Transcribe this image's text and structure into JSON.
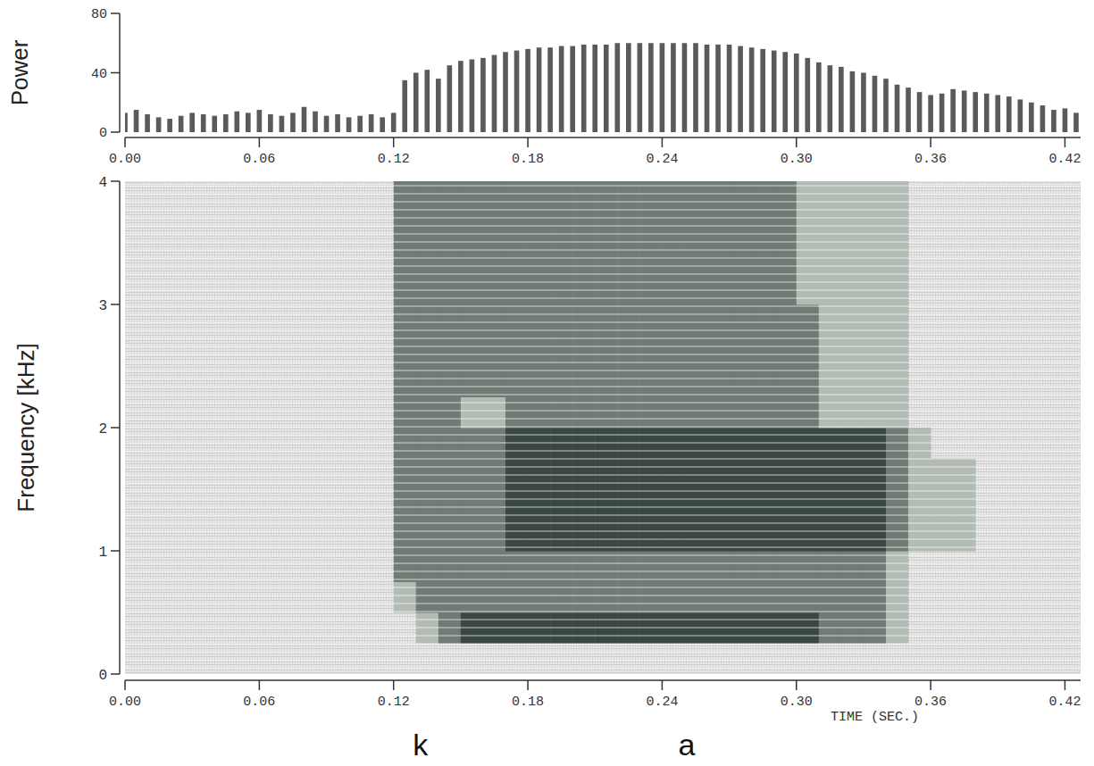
{
  "chart_data": [
    {
      "type": "bar",
      "y_label": "Power",
      "x": [
        0,
        0.005,
        0.01,
        0.015,
        0.02,
        0.025,
        0.03,
        0.035,
        0.04,
        0.045,
        0.05,
        0.055,
        0.06,
        0.065,
        0.07,
        0.075,
        0.08,
        0.085,
        0.09,
        0.095,
        0.1,
        0.105,
        0.11,
        0.115,
        0.12,
        0.125,
        0.13,
        0.135,
        0.14,
        0.145,
        0.15,
        0.155,
        0.16,
        0.165,
        0.17,
        0.175,
        0.18,
        0.185,
        0.19,
        0.195,
        0.2,
        0.205,
        0.21,
        0.215,
        0.22,
        0.225,
        0.23,
        0.235,
        0.24,
        0.245,
        0.25,
        0.255,
        0.26,
        0.265,
        0.27,
        0.275,
        0.28,
        0.285,
        0.29,
        0.295,
        0.3,
        0.305,
        0.31,
        0.315,
        0.32,
        0.325,
        0.33,
        0.335,
        0.34,
        0.345,
        0.35,
        0.355,
        0.36,
        0.365,
        0.37,
        0.375,
        0.38,
        0.385,
        0.39,
        0.395,
        0.4,
        0.405,
        0.41,
        0.415,
        0.42,
        0.425
      ],
      "values": [
        13,
        15,
        12,
        10,
        9,
        11,
        13,
        12,
        11,
        12,
        14,
        13,
        15,
        12,
        11,
        13,
        17,
        14,
        11,
        12,
        10,
        11,
        12,
        10,
        13,
        35,
        40,
        42,
        36,
        45,
        48,
        49,
        50,
        52,
        54,
        55,
        56,
        57,
        57,
        58,
        58,
        59,
        59,
        59,
        60,
        60,
        60,
        60,
        60,
        60,
        60,
        60,
        59,
        59,
        59,
        58,
        57,
        56,
        55,
        54,
        53,
        50,
        47,
        45,
        44,
        41,
        40,
        38,
        36,
        32,
        30,
        27,
        25,
        26,
        29,
        28,
        27,
        26,
        25,
        24,
        22,
        20,
        18,
        15,
        16,
        13
      ],
      "xlim": [
        0,
        0.427
      ],
      "ylim": [
        0,
        80
      ],
      "xticks": [
        {
          "value": 0,
          "label": "0.00"
        },
        0.06,
        0.12,
        0.18,
        0.24,
        {
          "value": 0.3,
          "label": "0.30"
        },
        0.36,
        0.42
      ],
      "yticks": [
        0,
        40,
        80
      ],
      "color": "#5a5a5a"
    },
    {
      "type": "heatmap",
      "x_label": "TIME (SEC.)",
      "y_label": "Frequency [kHz]",
      "xlim": [
        0,
        0.427
      ],
      "ylim": [
        0,
        4
      ],
      "xticks": [
        {
          "value": 0,
          "label": "0.00"
        },
        0.06,
        0.12,
        0.18,
        0.24,
        {
          "value": 0.3,
          "label": "0.30"
        },
        0.36,
        0.42
      ],
      "yticks": [
        0,
        1,
        2,
        3,
        4
      ],
      "x_bins": [
        0,
        0.01,
        0.02,
        0.03,
        0.04,
        0.05,
        0.06,
        0.07,
        0.08,
        0.09,
        0.1,
        0.11,
        0.12,
        0.13,
        0.14,
        0.15,
        0.16,
        0.17,
        0.18,
        0.19,
        0.2,
        0.21,
        0.22,
        0.23,
        0.24,
        0.25,
        0.26,
        0.27,
        0.28,
        0.29,
        0.3,
        0.31,
        0.32,
        0.33,
        0.34,
        0.35,
        0.36,
        0.37,
        0.38,
        0.39,
        0.4,
        0.41,
        0.42
      ],
      "y_bins": [
        0,
        0.25,
        0.5,
        0.75,
        1,
        1.25,
        1.5,
        1.75,
        2,
        2.25,
        2.5,
        2.75,
        3,
        3.25,
        3.5,
        3.75,
        4
      ],
      "cells": [
        [
          0,
          0,
          0,
          0,
          0,
          0,
          0,
          0,
          0,
          0,
          0,
          0,
          0,
          0,
          0,
          0,
          0,
          0,
          0,
          0,
          0,
          0,
          0,
          0,
          0,
          0,
          0,
          0,
          0,
          0,
          0,
          0,
          0,
          0,
          0,
          0,
          0,
          0,
          0,
          0,
          0,
          0
        ],
        [
          0,
          0,
          0,
          0,
          0,
          0,
          0,
          0,
          0,
          0,
          0,
          0,
          0,
          1,
          2,
          3,
          3,
          3,
          3,
          3,
          3,
          3,
          3,
          3,
          3,
          3,
          3,
          3,
          3,
          3,
          3,
          2,
          2,
          2,
          1,
          0,
          0,
          0,
          0,
          0,
          0,
          0
        ],
        [
          0,
          0,
          0,
          0,
          0,
          0,
          0,
          0,
          0,
          0,
          0,
          0,
          1,
          2,
          2,
          2,
          2,
          2,
          2,
          2,
          2,
          2,
          2,
          2,
          2,
          2,
          2,
          2,
          2,
          2,
          2,
          2,
          2,
          2,
          1,
          0,
          0,
          0,
          0,
          0,
          0,
          0
        ],
        [
          0,
          0,
          0,
          0,
          0,
          0,
          0,
          0,
          0,
          0,
          0,
          0,
          2,
          2,
          2,
          2,
          2,
          2,
          2,
          2,
          2,
          2,
          2,
          2,
          2,
          2,
          2,
          2,
          2,
          2,
          2,
          2,
          2,
          2,
          1,
          0,
          0,
          0,
          0,
          0,
          0,
          0
        ],
        [
          0,
          0,
          0,
          0,
          0,
          0,
          0,
          0,
          0,
          0,
          0,
          0,
          2,
          2,
          2,
          2,
          2,
          3,
          3,
          3,
          3,
          3,
          3,
          3,
          3,
          3,
          3,
          3,
          3,
          3,
          3,
          3,
          3,
          3,
          2,
          1,
          1,
          1,
          0,
          0,
          0,
          0
        ],
        [
          0,
          0,
          0,
          0,
          0,
          0,
          0,
          0,
          0,
          0,
          0,
          0,
          2,
          2,
          2,
          2,
          2,
          3,
          3,
          3,
          3,
          3,
          3,
          3,
          3,
          3,
          3,
          3,
          3,
          3,
          3,
          3,
          3,
          3,
          2,
          1,
          1,
          1,
          0,
          0,
          0,
          0
        ],
        [
          0,
          0,
          0,
          0,
          0,
          0,
          0,
          0,
          0,
          0,
          0,
          0,
          2,
          2,
          2,
          2,
          2,
          3,
          3,
          3,
          3,
          3,
          3,
          3,
          3,
          3,
          3,
          3,
          3,
          3,
          3,
          3,
          3,
          3,
          2,
          1,
          1,
          1,
          0,
          0,
          0,
          0
        ],
        [
          0,
          0,
          0,
          0,
          0,
          0,
          0,
          0,
          0,
          0,
          0,
          0,
          2,
          2,
          2,
          2,
          2,
          3,
          3,
          3,
          3,
          3,
          3,
          3,
          3,
          3,
          3,
          3,
          3,
          3,
          3,
          3,
          3,
          3,
          2,
          1,
          0,
          0,
          0,
          0,
          0,
          0
        ],
        [
          0,
          0,
          0,
          0,
          0,
          0,
          0,
          0,
          0,
          0,
          0,
          0,
          2,
          2,
          2,
          1,
          1,
          2,
          2,
          2,
          2,
          2,
          2,
          2,
          2,
          2,
          2,
          2,
          2,
          2,
          2,
          1,
          1,
          1,
          1,
          0,
          0,
          0,
          0,
          0,
          0,
          0
        ],
        [
          0,
          0,
          0,
          0,
          0,
          0,
          0,
          0,
          0,
          0,
          0,
          0,
          2,
          2,
          2,
          2,
          2,
          2,
          2,
          2,
          2,
          2,
          2,
          2,
          2,
          2,
          2,
          2,
          2,
          2,
          2,
          1,
          1,
          1,
          1,
          0,
          0,
          0,
          0,
          0,
          0,
          0
        ],
        [
          0,
          0,
          0,
          0,
          0,
          0,
          0,
          0,
          0,
          0,
          0,
          0,
          2,
          2,
          2,
          2,
          2,
          2,
          2,
          2,
          2,
          2,
          2,
          2,
          2,
          2,
          2,
          2,
          2,
          2,
          2,
          1,
          1,
          1,
          1,
          0,
          0,
          0,
          0,
          0,
          0,
          0
        ],
        [
          0,
          0,
          0,
          0,
          0,
          0,
          0,
          0,
          0,
          0,
          0,
          0,
          2,
          2,
          2,
          2,
          2,
          2,
          2,
          2,
          2,
          2,
          2,
          2,
          2,
          2,
          2,
          2,
          2,
          2,
          2,
          1,
          1,
          1,
          1,
          0,
          0,
          0,
          0,
          0,
          0,
          0
        ],
        [
          0,
          0,
          0,
          0,
          0,
          0,
          0,
          0,
          0,
          0,
          0,
          0,
          2,
          2,
          2,
          2,
          2,
          2,
          2,
          2,
          2,
          2,
          2,
          2,
          2,
          2,
          2,
          2,
          2,
          2,
          1,
          1,
          1,
          1,
          1,
          0,
          0,
          0,
          0,
          0,
          0,
          0
        ],
        [
          0,
          0,
          0,
          0,
          0,
          0,
          0,
          0,
          0,
          0,
          0,
          0,
          2,
          2,
          2,
          2,
          2,
          2,
          2,
          2,
          2,
          2,
          2,
          2,
          2,
          2,
          2,
          2,
          2,
          2,
          1,
          1,
          1,
          1,
          1,
          0,
          0,
          0,
          0,
          0,
          0,
          0
        ],
        [
          0,
          0,
          0,
          0,
          0,
          0,
          0,
          0,
          0,
          0,
          0,
          0,
          2,
          2,
          2,
          2,
          2,
          2,
          2,
          2,
          2,
          2,
          2,
          2,
          2,
          2,
          2,
          2,
          2,
          2,
          1,
          1,
          1,
          1,
          1,
          0,
          0,
          0,
          0,
          0,
          0,
          0
        ],
        [
          0,
          0,
          0,
          0,
          0,
          0,
          0,
          0,
          0,
          0,
          0,
          0,
          2,
          2,
          2,
          2,
          2,
          2,
          2,
          2,
          2,
          2,
          2,
          2,
          2,
          2,
          2,
          2,
          2,
          2,
          1,
          1,
          1,
          1,
          1,
          0,
          0,
          0,
          0,
          0,
          0,
          0
        ]
      ],
      "annotations": [
        {
          "text": "k",
          "x": 0.132
        },
        {
          "text": "a",
          "x": 0.251
        }
      ]
    }
  ]
}
